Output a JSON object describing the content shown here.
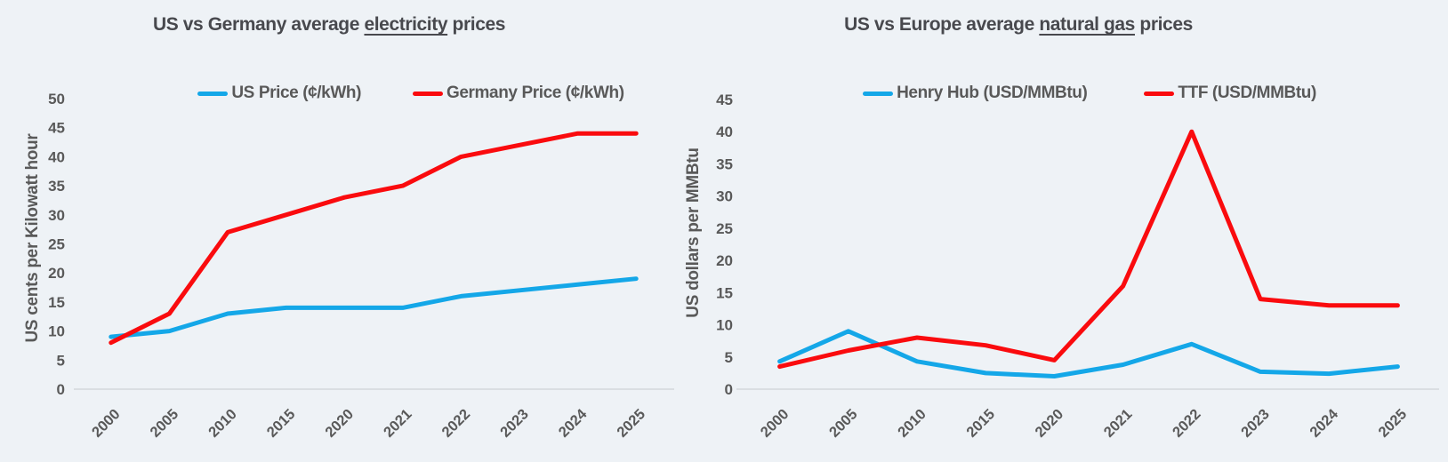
{
  "page": {
    "background_color": "#eef2f6",
    "text_color": "#595959",
    "title_color": "#48494e",
    "blue_accent": "#14a7e8",
    "red_accent": "#fa0b0e"
  },
  "chart_data": [
    {
      "type": "line",
      "title": "US vs Germany average electricity prices",
      "title_parts": {
        "prefix": "US vs Germany average ",
        "underlined": "electricity",
        "suffix": " prices"
      },
      "ylabel": "US cents per Kilowatt hour",
      "xlabel": "",
      "categories": [
        "2000",
        "2005",
        "2010",
        "2015",
        "2020",
        "2021",
        "2022",
        "2023",
        "2024",
        "2025"
      ],
      "series": [
        {
          "name": "US Price (¢/kWh)",
          "color": "#14a7e8",
          "values": [
            9,
            10,
            13,
            14,
            14,
            14,
            16,
            17,
            18,
            19
          ]
        },
        {
          "name": "Germany Price (¢/kWh)",
          "color": "#fa0b0e",
          "values": [
            8,
            13,
            27,
            30,
            33,
            35,
            40,
            42,
            44,
            44
          ]
        }
      ],
      "ylim": [
        0,
        50
      ],
      "ytick_step": 5,
      "yticks": [
        0,
        5,
        10,
        15,
        20,
        25,
        30,
        35,
        40,
        45,
        50
      ],
      "grid": false,
      "legend_position": "top",
      "x_tick_rotation": 45
    },
    {
      "type": "line",
      "title": "US vs Europe average natural gas prices",
      "title_parts": {
        "prefix": "US vs Europe average ",
        "underlined": "natural gas",
        "suffix": " prices"
      },
      "ylabel": "US dollars per MMBtu",
      "xlabel": "",
      "categories": [
        "2000",
        "2005",
        "2010",
        "2015",
        "2020",
        "2021",
        "2022",
        "2023",
        "2024",
        "2025"
      ],
      "series": [
        {
          "name": "Henry Hub (USD/MMBtu)",
          "color": "#14a7e8",
          "values": [
            4.3,
            9,
            4.3,
            2.5,
            2,
            3.8,
            7,
            2.7,
            2.4,
            3.5
          ]
        },
        {
          "name": "TTF (USD/MMBtu)",
          "color": "#fa0b0e",
          "values": [
            3.5,
            6,
            8,
            6.8,
            4.5,
            16,
            40,
            14,
            13,
            13
          ]
        }
      ],
      "ylim": [
        0,
        45
      ],
      "ytick_step": 5,
      "yticks": [
        0,
        5,
        10,
        15,
        20,
        25,
        30,
        35,
        40,
        45
      ],
      "grid": false,
      "legend_position": "top",
      "x_tick_rotation": 45
    }
  ]
}
